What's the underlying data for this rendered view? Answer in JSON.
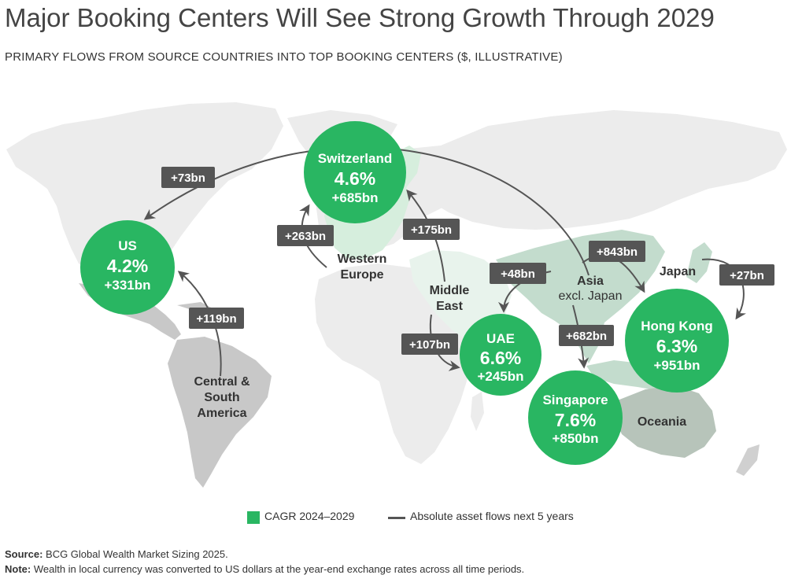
{
  "title": "Major Booking Centers Will See Strong Growth Through 2029",
  "subtitle": "PRIMARY FLOWS FROM SOURCE COUNTRIES INTO TOP BOOKING CENTERS ($, ILLUSTRATIVE)",
  "colors": {
    "booking_center": "#29b662",
    "flow_badge": "#555555",
    "land_base": "#ececec",
    "region_americas": "#c8c8c8",
    "region_europe": "#d6eedd",
    "region_middle_east": "#e8f3ec",
    "region_asia": "#c3dccd",
    "region_oceania": "#b7c4ba"
  },
  "booking_centers": [
    {
      "name": "US",
      "cagr": "4.2%",
      "flow": "+331bn"
    },
    {
      "name": "Switzerland",
      "cagr": "4.6%",
      "flow": "+685bn"
    },
    {
      "name": "UAE",
      "cagr": "6.6%",
      "flow": "+245bn"
    },
    {
      "name": "Singapore",
      "cagr": "7.6%",
      "flow": "+850bn"
    },
    {
      "name": "Hong Kong",
      "cagr": "6.3%",
      "flow": "+951bn"
    }
  ],
  "regions": {
    "central_south_america": [
      "Central &",
      "South",
      "America"
    ],
    "western_europe": [
      "Western",
      "Europe"
    ],
    "middle_east": [
      "Middle",
      "East"
    ],
    "asia": "Asia",
    "asia_sub": "excl. Japan",
    "japan": "Japan",
    "oceania": "Oceania"
  },
  "flows": [
    {
      "from": "Asia excl. Japan",
      "to": "US",
      "label": "+73bn"
    },
    {
      "from": "Central & South America",
      "to": "US",
      "label": "+119bn"
    },
    {
      "from": "Western Europe",
      "to": "Switzerland",
      "label": "+263bn"
    },
    {
      "from": "Middle East",
      "to": "Switzerland",
      "label": "+175bn"
    },
    {
      "from": "Asia excl. Japan",
      "to": "UAE",
      "label": "+48bn"
    },
    {
      "from": "Middle East",
      "to": "UAE",
      "label": "+107bn"
    },
    {
      "from": "Asia excl. Japan",
      "to": "Hong Kong",
      "label": "+843bn"
    },
    {
      "from": "Asia excl. Japan",
      "to": "Singapore",
      "label": "+682bn"
    },
    {
      "from": "Japan",
      "to": "Hong Kong",
      "label": "+27bn"
    }
  ],
  "legend": {
    "cagr_label": "CAGR 2024–2029",
    "flows_label": "Absolute asset flows next 5 years"
  },
  "footer": {
    "source_label": "Source:",
    "source_text": " BCG Global Wealth Market Sizing 2025.",
    "note_label": "Note:",
    "note_text": " Wealth in local currency was converted to US dollars at the year-end exchange rates across all time periods."
  }
}
